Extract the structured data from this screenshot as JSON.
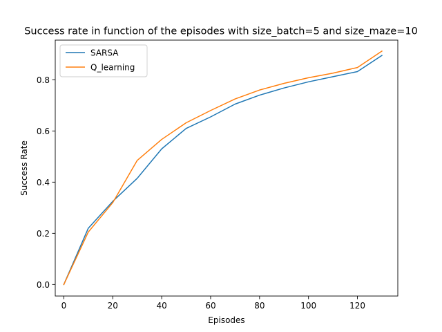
{
  "chart_data": {
    "type": "line",
    "title": "Success rate in function of the episodes with size_batch=5 and size_maze=10",
    "xlabel": "Episodes",
    "ylabel": "Success Rate",
    "xlim": [
      -3.5,
      136.5
    ],
    "ylim": [
      -0.045,
      0.955
    ],
    "xticks": [
      0,
      20,
      40,
      60,
      80,
      100,
      120
    ],
    "xtick_labels": [
      "0",
      "20",
      "40",
      "60",
      "80",
      "100",
      "120"
    ],
    "yticks": [
      0.0,
      0.2,
      0.4,
      0.6,
      0.8
    ],
    "ytick_labels": [
      "0.0",
      "0.2",
      "0.4",
      "0.6",
      "0.8"
    ],
    "grid": false,
    "legend_position": "upper-left",
    "x": [
      0,
      10,
      20,
      30,
      40,
      50,
      60,
      70,
      80,
      90,
      100,
      110,
      120,
      130
    ],
    "series": [
      {
        "name": "SARSA",
        "color": "#1f77b4",
        "values": [
          0.0,
          0.22,
          0.325,
          0.415,
          0.53,
          0.61,
          0.655,
          0.705,
          0.74,
          0.768,
          0.792,
          0.812,
          0.832,
          0.895
        ]
      },
      {
        "name": "Q_learning",
        "color": "#ff7f0e",
        "values": [
          0.0,
          0.205,
          0.32,
          0.485,
          0.567,
          0.632,
          0.68,
          0.725,
          0.76,
          0.786,
          0.808,
          0.826,
          0.848,
          0.912
        ]
      }
    ]
  }
}
